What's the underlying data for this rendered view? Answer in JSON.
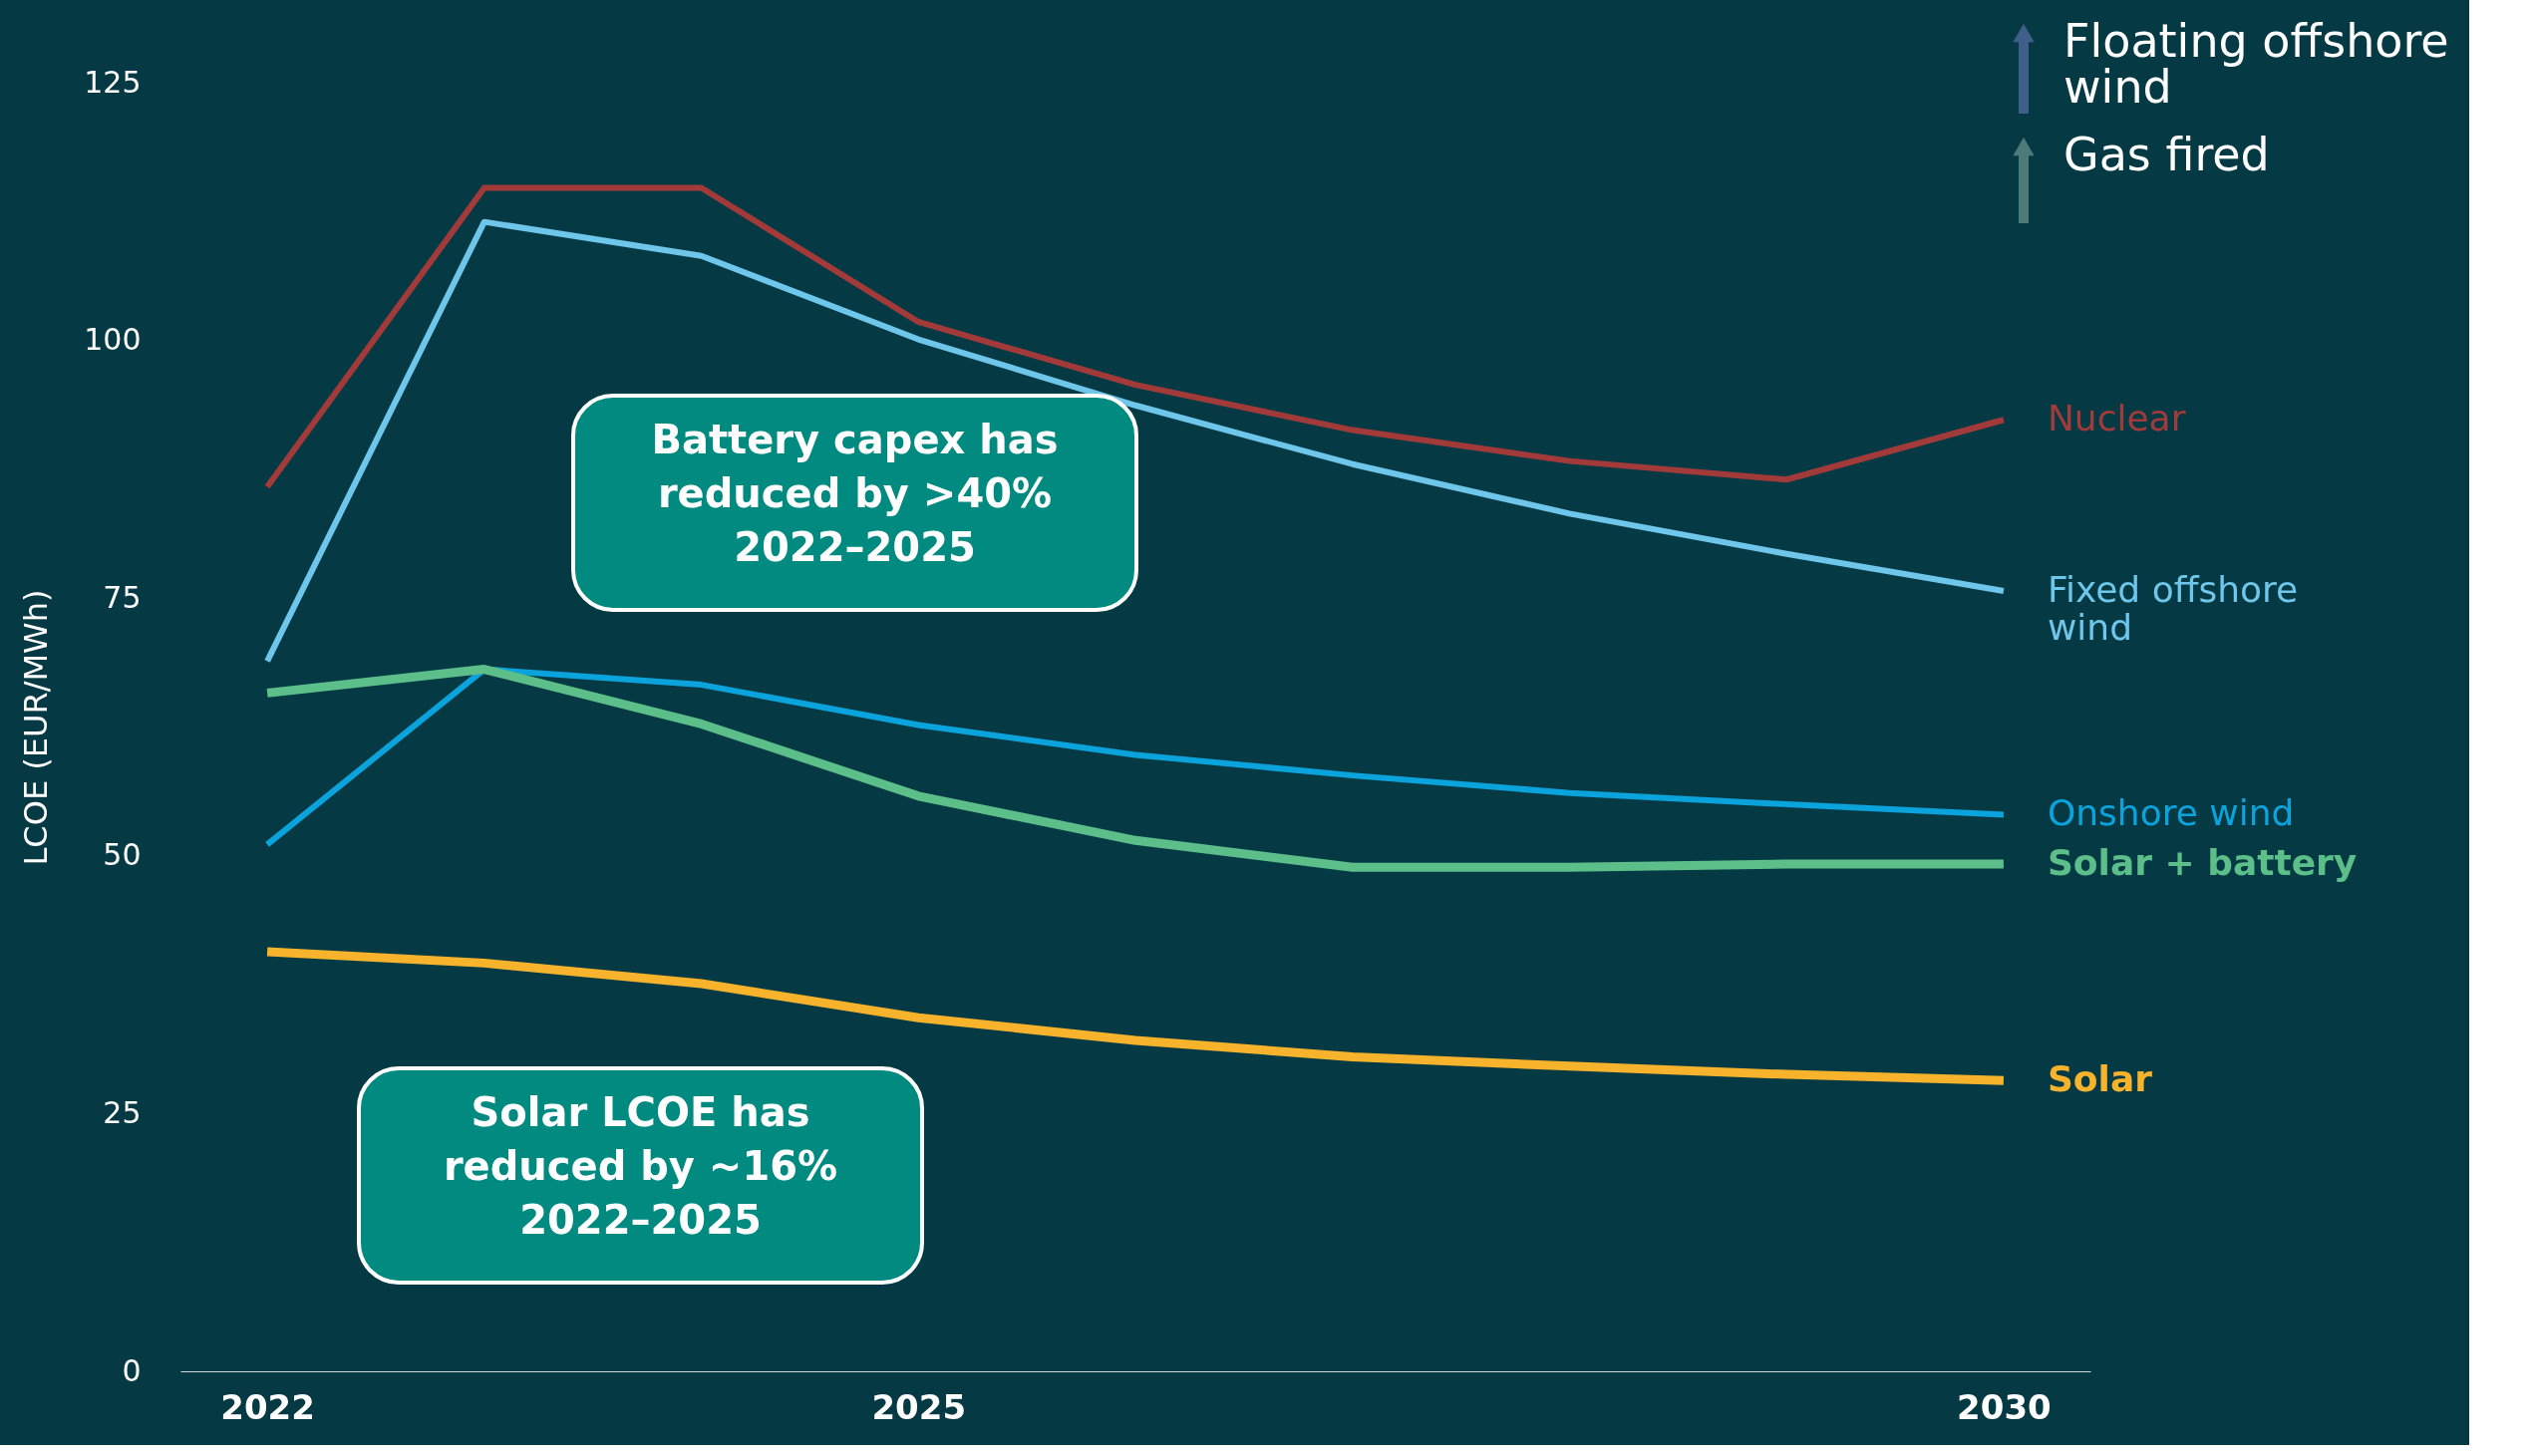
{
  "chart_data": {
    "type": "line",
    "ylabel": "LCOE (EUR/MWh)",
    "categories": [
      "2022",
      null,
      null,
      "2025",
      null,
      null,
      null,
      null,
      "2030"
    ],
    "ylim": [
      0,
      125
    ],
    "yticks": [
      0,
      25,
      50,
      75,
      100,
      125
    ],
    "grid": false,
    "legend": false,
    "marker": "none",
    "line_style": "solid",
    "series": [
      {
        "name": "Nuclear",
        "color": "#a33a3a",
        "values": [
          85.8,
          114.8,
          114.8,
          101.8,
          95.7,
          91.3,
          88.3,
          86.5,
          92.3
        ]
      },
      {
        "name": "Fixed offshore wind",
        "color": "#6ec6ea",
        "values": [
          68.9,
          111.5,
          108.2,
          100.1,
          93.7,
          88.0,
          83.2,
          79.3,
          75.7
        ]
      },
      {
        "name": "Onshore wind",
        "color": "#0aa3dc",
        "values": [
          51.1,
          68.1,
          66.6,
          62.7,
          59.8,
          57.8,
          56.1,
          55.0,
          54.0
        ]
      },
      {
        "name": "Solar + battery",
        "color": "#5cbf8a",
        "values": [
          65.8,
          68.1,
          62.8,
          55.8,
          51.5,
          48.9,
          48.9,
          49.2,
          49.2
        ]
      },
      {
        "name": "Solar",
        "color": "#f7b32b",
        "values": [
          40.7,
          39.6,
          37.6,
          34.3,
          32.1,
          30.5,
          29.6,
          28.8,
          28.2
        ]
      }
    ],
    "annotations": [
      "Battery capex has reduced by >40% 2022–2025",
      "Solar LCOE has reduced by ~16% 2022–2025",
      "Floating offshore wind",
      "Gas fired"
    ]
  }
}
